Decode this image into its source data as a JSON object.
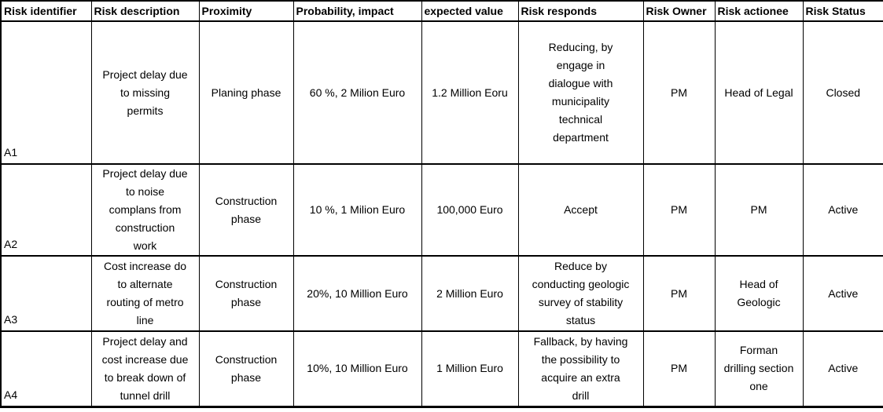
{
  "header": {
    "cells": [
      "Risk identifier",
      "Risk description",
      "Proximity",
      "Probability, impact",
      "expected value",
      "Risk responds",
      "Risk Owner",
      "Risk actionee",
      "Risk Status"
    ]
  },
  "rows": [
    {
      "id": "A1",
      "description": "Project delay due\nto missing\npermits",
      "proximity": "Planing phase",
      "probability_impact": "60 %, 2 Milion Euro",
      "expected_value": "1.2 Million Eoru",
      "risk_responds": "Reducing, by\nengage in\ndialogue with\nmunicipality\ntechnical\ndepartment",
      "risk_owner": "PM",
      "risk_actionee": "Head of Legal",
      "risk_status": "Closed"
    },
    {
      "id": "A2",
      "description": "Project delay due\nto noise\ncomplans from\nconstruction\nwork",
      "proximity": "Construction\nphase",
      "probability_impact": "10 %, 1 Milion Euro",
      "expected_value": "100,000 Euro",
      "risk_responds": "Accept",
      "risk_owner": "PM",
      "risk_actionee": "PM",
      "risk_status": "Active"
    },
    {
      "id": "A3",
      "description": "Cost increase do\nto alternate\nrouting of metro\nline",
      "proximity": "Construction\nphase",
      "probability_impact": "20%, 10 Million Euro",
      "expected_value": "2 Million Euro",
      "risk_responds": "Reduce by\nconducting geologic\nsurvey of stability\nstatus",
      "risk_owner": "PM",
      "risk_actionee": "Head of\nGeologic",
      "risk_status": "Active"
    },
    {
      "id": "A4",
      "description": "Project delay and\ncost increase due\nto break down of\ntunnel drill",
      "proximity": "Construction\nphase",
      "probability_impact": "10%, 10 Million Euro",
      "expected_value": "1 Million Euro",
      "risk_responds": "Fallback, by having\nthe possibility to\nacquire an extra\ndrill",
      "risk_owner": "PM",
      "risk_actionee": "Forman\ndrilling section\none",
      "risk_status": "Active"
    }
  ],
  "chart_data": {
    "type": "table",
    "columns": [
      "Risk identifier",
      "Risk description",
      "Proximity",
      "Probability, impact",
      "expected value",
      "Risk responds",
      "Risk Owner",
      "Risk actionee",
      "Risk Status"
    ],
    "rows": [
      [
        "A1",
        "Project delay due to missing permits",
        "Planing phase",
        "60 %, 2 Milion Euro",
        "1.2 Million Eoru",
        "Reducing, by engage in dialogue with municipality technical department",
        "PM",
        "Head of Legal",
        "Closed"
      ],
      [
        "A2",
        "Project delay due to noise complans from construction work",
        "Construction phase",
        "10 %, 1 Milion Euro",
        "100,000 Euro",
        "Accept",
        "PM",
        "PM",
        "Active"
      ],
      [
        "A3",
        "Cost increase do to alternate routing of metro line",
        "Construction phase",
        "20%, 10 Million Euro",
        "2 Million Euro",
        "Reduce by conducting geologic survey of stability status",
        "PM",
        "Head of Geologic",
        "Active"
      ],
      [
        "A4",
        "Project delay and cost increase due to break down of tunnel drill",
        "Construction phase",
        "10%, 10 Million Euro",
        "1 Million Euro",
        "Fallback, by having the possibility to acquire an extra drill",
        "PM",
        "Forman drilling section one",
        "Active"
      ]
    ],
    "colors": {
      "border": "#000000",
      "text": "#000000",
      "background": "#ffffff"
    }
  }
}
